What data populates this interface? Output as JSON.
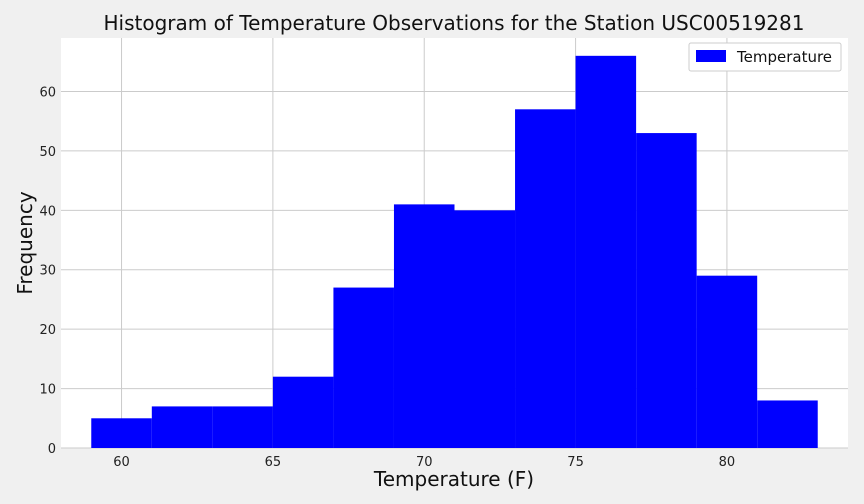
{
  "chart_data": {
    "type": "bar",
    "title": "Histogram of Temperature Observations for the Station USC00519281",
    "xlabel": "Temperature (F)",
    "ylabel": "Frequency",
    "bin_edges": [
      59,
      61,
      63,
      65,
      67,
      69,
      71,
      73,
      75,
      77,
      79,
      81,
      83
    ],
    "counts": [
      5,
      7,
      7,
      12,
      27,
      41,
      40,
      57,
      66,
      53,
      29,
      8
    ],
    "xlim": [
      58,
      84
    ],
    "ylim": [
      0,
      69
    ],
    "xticks": [
      "60",
      "65",
      "70",
      "75",
      "80"
    ],
    "yticks": [
      "0",
      "10",
      "20",
      "30",
      "40",
      "50",
      "60"
    ],
    "series": [
      {
        "name": "Temperature"
      }
    ],
    "grid": true,
    "legend_position": "top-right",
    "colors": {
      "bar": "#0000ff",
      "plot_background": "#ffffff",
      "figure_background": "#f0f0f0",
      "grid": "#cbcbcb"
    }
  }
}
